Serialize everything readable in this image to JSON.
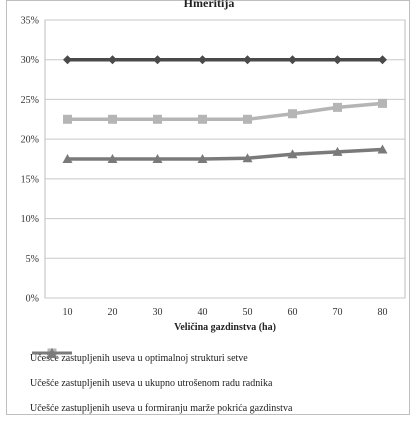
{
  "chart_data": {
    "type": "line",
    "title": "Hmeritija",
    "xlabel": "Veličina gazdinstva (ha)",
    "ylabel": "",
    "categories": [
      "10",
      "20",
      "30",
      "40",
      "50",
      "60",
      "70",
      "80"
    ],
    "yticks": [
      "0%",
      "5%",
      "10%",
      "15%",
      "20%",
      "25%",
      "30%",
      "35%"
    ],
    "ylim": [
      0,
      35
    ],
    "grid": true,
    "legend_position": "bottom",
    "series": [
      {
        "name": "Učešće zastupljenih useva u optimalnoj strukturi setve",
        "values": [
          30,
          30,
          30,
          30,
          30,
          30,
          30,
          30
        ],
        "color": "#4a4a4a",
        "marker": "diamond"
      },
      {
        "name": "Učešće zastupljenih useva u ukupno utrošenom radu radnika",
        "values": [
          22.5,
          22.5,
          22.5,
          22.5,
          22.5,
          23.2,
          24,
          24.5
        ],
        "color": "#b5b5b5",
        "marker": "square"
      },
      {
        "name": "Učešće zastupljenih useva u formiranju marže pokrića gazdinstva",
        "values": [
          17.5,
          17.5,
          17.5,
          17.5,
          17.6,
          18.1,
          18.4,
          18.7
        ],
        "color": "#7a7a7a",
        "marker": "triangle"
      }
    ]
  }
}
